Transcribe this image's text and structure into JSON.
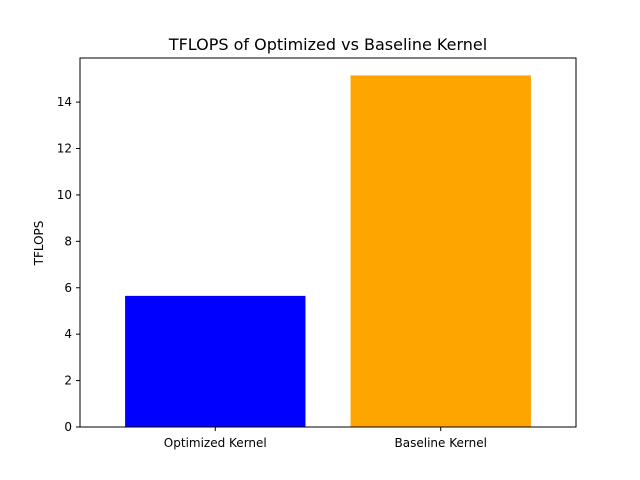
{
  "chart_data": {
    "type": "bar",
    "title": "TFLOPS of Optimized vs Baseline Kernel",
    "xlabel": "",
    "ylabel": "TFLOPS",
    "categories": [
      "Optimized Kernel",
      "Baseline Kernel"
    ],
    "values": [
      5.65,
      15.15
    ],
    "bar_colors": [
      "#0000ff",
      "#ffa500"
    ],
    "ylim": [
      0,
      15.9
    ],
    "yticks": [
      0,
      2,
      4,
      6,
      8,
      10,
      12,
      14
    ],
    "grid": false,
    "legend": "none"
  }
}
